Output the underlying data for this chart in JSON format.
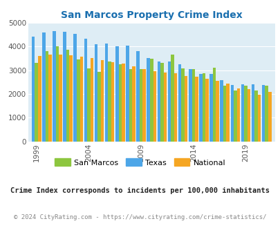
{
  "title": "San Marcos Property Crime Index",
  "years": [
    1999,
    2000,
    2001,
    2002,
    2003,
    2004,
    2005,
    2006,
    2007,
    2008,
    2009,
    2010,
    2011,
    2012,
    2013,
    2014,
    2015,
    2016,
    2017,
    2018,
    2019,
    2020,
    2021
  ],
  "san_marcos": [
    3300,
    3800,
    4000,
    3850,
    3450,
    3080,
    2920,
    3380,
    3240,
    3050,
    3060,
    3480,
    3300,
    3650,
    3080,
    3050,
    2880,
    3120,
    2340,
    2130,
    2350,
    2130,
    2350
  ],
  "texas": [
    4420,
    4580,
    4640,
    4620,
    4520,
    4320,
    4100,
    4120,
    4010,
    4040,
    3800,
    3500,
    3370,
    3360,
    3250,
    3060,
    2840,
    2830,
    2570,
    2390,
    2400,
    2400,
    2390
  ],
  "national": [
    3610,
    3670,
    3660,
    3620,
    3560,
    3500,
    3430,
    3340,
    3280,
    3170,
    3040,
    2950,
    2900,
    2860,
    2750,
    2720,
    2650,
    2540,
    2440,
    2220,
    2200,
    1970,
    2100
  ],
  "bar_colors": {
    "san_marcos": "#8dc63f",
    "texas": "#4da6e8",
    "national": "#f5a623"
  },
  "plot_bg": "#deedf5",
  "ylim": [
    0,
    5000
  ],
  "yticks": [
    0,
    1000,
    2000,
    3000,
    4000,
    5000
  ],
  "xlabel_ticks": [
    1999,
    2004,
    2009,
    2014,
    2019
  ],
  "legend_labels": [
    "San Marcos",
    "Texas",
    "National"
  ],
  "footnote1": "Crime Index corresponds to incidents per 100,000 inhabitants",
  "footnote2": "© 2024 CityRating.com - https://www.cityrating.com/crime-statistics/",
  "title_color": "#1a6faf",
  "footnote1_color": "#222222",
  "footnote2_color": "#888888"
}
